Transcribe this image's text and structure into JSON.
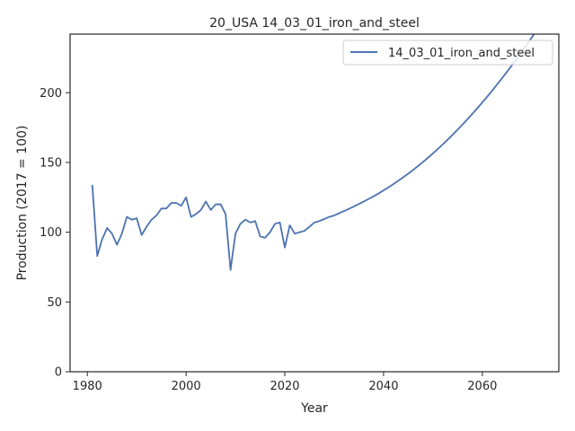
{
  "chart_data": {
    "type": "line",
    "title": "20_USA 14_03_01_iron_and_steel",
    "xlabel": "Year",
    "ylabel": "Production (2017 = 100)",
    "xlim": [
      1976.5,
      2075.5
    ],
    "ylim": [
      0,
      242
    ],
    "xticks": [
      1980,
      2000,
      2020,
      2040,
      2060
    ],
    "yticks": [
      0,
      50,
      100,
      150,
      200
    ],
    "grid": false,
    "legend_position": "top-right",
    "series": [
      {
        "name": "14_03_01_iron_and_steel",
        "color": "#4c72b0",
        "x": [
          1981,
          1982,
          1983,
          1984,
          1985,
          1986,
          1987,
          1988,
          1989,
          1990,
          1991,
          1992,
          1993,
          1994,
          1995,
          1996,
          1997,
          1998,
          1999,
          2000,
          2001,
          2002,
          2003,
          2004,
          2005,
          2006,
          2007,
          2008,
          2009,
          2010,
          2011,
          2012,
          2013,
          2014,
          2015,
          2016,
          2017,
          2018,
          2019,
          2020,
          2021,
          2022,
          2023,
          2024,
          2025,
          2026,
          2027,
          2028,
          2029,
          2030,
          2031,
          2032,
          2033,
          2034,
          2035,
          2036,
          2037,
          2038,
          2039,
          2040,
          2041,
          2042,
          2043,
          2044,
          2045,
          2046,
          2047,
          2048,
          2049,
          2050,
          2051,
          2052,
          2053,
          2054,
          2055,
          2056,
          2057,
          2058,
          2059,
          2060,
          2061,
          2062,
          2063,
          2064,
          2065,
          2066,
          2067,
          2068,
          2069,
          2070,
          2071,
          2072
        ],
        "y": [
          134,
          83,
          95,
          103,
          99,
          91,
          99,
          111,
          109,
          110,
          98,
          104,
          109,
          112,
          117,
          117,
          121,
          121,
          119,
          125,
          111,
          113,
          116,
          122,
          116,
          120,
          120,
          113,
          73,
          99,
          106,
          109,
          107,
          108,
          97,
          96,
          100,
          106,
          107,
          89,
          105,
          99,
          100,
          101,
          104,
          107,
          108,
          109.5,
          111,
          112,
          113.6,
          115.2,
          116.8,
          118.5,
          120.2,
          122,
          123.9,
          125.8,
          127.8,
          130,
          132.2,
          134.5,
          136.9,
          139.4,
          142,
          144.7,
          147.5,
          150.4,
          153.4,
          156.5,
          159.7,
          163,
          166.4,
          169.9,
          173.5,
          177.2,
          181,
          184.9,
          188.9,
          193,
          197.2,
          201.5,
          205.9,
          210.4,
          215,
          219.7,
          224.5,
          229.4,
          234.4,
          239.5,
          244.7,
          250
        ]
      }
    ]
  }
}
